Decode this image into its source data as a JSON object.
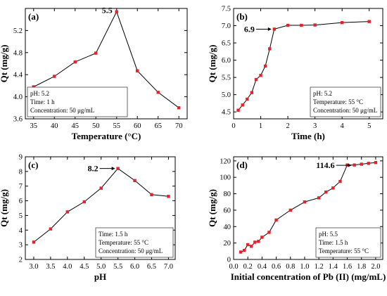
{
  "chart_data": [
    {
      "type": "line",
      "panel": "(a)",
      "xlabel": "Temperature (°C)",
      "ylabel": "Qt (mg/g)",
      "xlim": [
        33,
        72
      ],
      "ylim": [
        3.6,
        5.6
      ],
      "xticks": [
        35,
        40,
        45,
        50,
        55,
        60,
        65,
        70
      ],
      "yticks": [
        3.6,
        4.0,
        4.4,
        4.8,
        5.2
      ],
      "ytick_decimals": 1,
      "x": [
        35,
        40,
        45,
        50,
        55,
        60,
        65,
        70
      ],
      "y": [
        4.18,
        4.37,
        4.63,
        4.79,
        5.54,
        4.47,
        4.08,
        3.8
      ],
      "annotation": {
        "text": "5.5",
        "x": 55,
        "y": 5.54
      },
      "conditions": [
        "pH: 5.2",
        "Time: 1 h",
        "Concentration: 50 μg/mL"
      ]
    },
    {
      "type": "line",
      "panel": "(b)",
      "xlabel": "Time (h)",
      "ylabel": "Qt (mg/g)",
      "xlim": [
        0,
        5.5
      ],
      "ylim": [
        4.3,
        7.5
      ],
      "xticks": [
        0,
        1,
        2,
        3,
        4,
        5
      ],
      "yticks": [
        4.5,
        5.0,
        5.5,
        6.0,
        6.5,
        7.0,
        7.5
      ],
      "ytick_decimals": 1,
      "x": [
        0.17,
        0.33,
        0.5,
        0.67,
        0.83,
        1.0,
        1.17,
        1.33,
        1.5,
        2.0,
        2.5,
        3.0,
        4.0,
        5.0
      ],
      "y": [
        4.55,
        4.7,
        4.87,
        5.06,
        5.44,
        5.56,
        5.83,
        6.33,
        6.9,
        7.01,
        7.01,
        7.02,
        7.09,
        7.12
      ],
      "annotation": {
        "text": "6.9",
        "x": 1.5,
        "y": 6.9
      },
      "conditions": [
        "pH: 5.2",
        "Temperature: 55 °C",
        "Concentration: 50 μg/mL"
      ]
    },
    {
      "type": "line",
      "panel": "(c)",
      "xlabel": "pH",
      "ylabel": "Qt (mg/g)",
      "xlim": [
        2.75,
        7.2
      ],
      "ylim": [
        2,
        9
      ],
      "xticks": [
        3.0,
        3.5,
        4.0,
        4.5,
        5.0,
        5.5,
        6.0,
        6.5,
        7.0
      ],
      "xtick_decimals": 1,
      "yticks": [
        2,
        3,
        4,
        5,
        6,
        7,
        8,
        9
      ],
      "x": [
        3.0,
        3.5,
        4.0,
        4.5,
        5.0,
        5.5,
        6.0,
        6.5,
        7.0
      ],
      "y": [
        3.18,
        4.08,
        5.24,
        5.93,
        6.86,
        8.2,
        7.38,
        6.42,
        6.3
      ],
      "annotation": {
        "text": "8.2",
        "x": 5.5,
        "y": 8.2
      },
      "conditions": [
        "Time: 1.5 h",
        "Temperature: 55 °C",
        "Concentration: 50 μg/mL"
      ]
    },
    {
      "type": "line",
      "panel": "(d)",
      "xlabel": "Initial concentration of Pb (II) (mg/mL)",
      "ylabel": "Qt (mg/g)",
      "xlim": [
        0,
        2.1
      ],
      "ylim": [
        0,
        125
      ],
      "xticks": [
        0.0,
        0.2,
        0.4,
        0.6,
        0.8,
        1.0,
        1.2,
        1.4,
        1.6,
        1.8,
        2.0
      ],
      "xtick_decimals": 1,
      "yticks": [
        0,
        20,
        40,
        60,
        80,
        100,
        120
      ],
      "x": [
        0.1,
        0.15,
        0.2,
        0.25,
        0.3,
        0.35,
        0.4,
        0.5,
        0.6,
        0.8,
        1.0,
        1.2,
        1.3,
        1.4,
        1.5,
        1.6,
        1.7,
        1.8,
        1.9,
        2.0
      ],
      "y": [
        9,
        11,
        18,
        16,
        21,
        22,
        27,
        33,
        48,
        60,
        70,
        75,
        82,
        87,
        95,
        115,
        115,
        116,
        117,
        118
      ],
      "annotation": {
        "text": "114.6",
        "x": 1.7,
        "y": 114.6
      },
      "conditions": [
        "pH: 5.5",
        "Time: 1.5 h",
        "Temperature: 55 °C"
      ]
    }
  ]
}
